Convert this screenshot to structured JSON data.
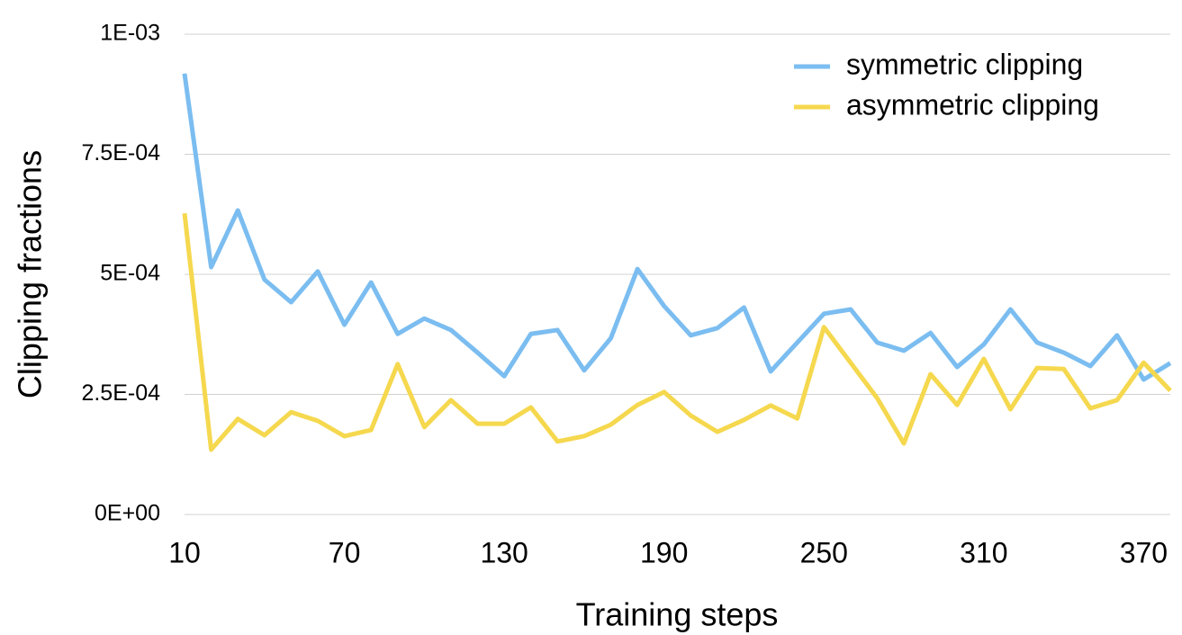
{
  "chart_data": {
    "type": "line",
    "x_label": "Training steps",
    "y_label": "Clipping fractions",
    "x": [
      10,
      20,
      30,
      40,
      50,
      60,
      70,
      80,
      90,
      100,
      110,
      120,
      130,
      140,
      150,
      160,
      170,
      180,
      190,
      200,
      210,
      220,
      230,
      240,
      250,
      260,
      270,
      280,
      290,
      300,
      310,
      320,
      330,
      340,
      350,
      360,
      370,
      380
    ],
    "series": [
      {
        "name": "symmetric clipping",
        "color": "#7bbdf0",
        "values": [
          0.000918,
          0.000515,
          0.000633,
          0.000489,
          0.000442,
          0.000506,
          0.000395,
          0.000483,
          0.000376,
          0.000408,
          0.000384,
          0.000337,
          0.000288,
          0.000376,
          0.000384,
          0.0003,
          0.000367,
          0.000511,
          0.000434,
          0.000373,
          0.000388,
          0.000431,
          0.000298,
          0.000358,
          0.000418,
          0.000427,
          0.000358,
          0.000341,
          0.000378,
          0.000307,
          0.000354,
          0.000427,
          0.000358,
          0.000337,
          0.000309,
          0.000373,
          0.000281,
          0.000315
        ]
      },
      {
        "name": "asymmetric clipping",
        "color": "#f5d84e",
        "values": [
          0.000627,
          0.000135,
          0.000199,
          0.000165,
          0.000213,
          0.000195,
          0.000163,
          0.000176,
          0.000313,
          0.000182,
          0.000238,
          0.000189,
          0.000189,
          0.000223,
          0.000152,
          0.000163,
          0.000187,
          0.000228,
          0.000255,
          0.000206,
          0.000172,
          0.000197,
          0.000227,
          0.0002,
          0.00039,
          0.000316,
          0.000242,
          0.000148,
          0.000292,
          0.000228,
          0.000324,
          0.000219,
          0.000305,
          0.000303,
          0.000221,
          0.000238,
          0.000316,
          0.000258
        ]
      }
    ],
    "xlim": [
      10,
      380
    ],
    "xticks": [
      10,
      70,
      130,
      190,
      250,
      310,
      370
    ],
    "ylim": [
      0,
      0.001
    ],
    "yticks": [
      {
        "value": 0,
        "label": "0E+00"
      },
      {
        "value": 0.00025,
        "label": "2.5E-04"
      },
      {
        "value": 0.0005,
        "label": "5E-04"
      },
      {
        "value": 0.00075,
        "label": "7.5E-04"
      },
      {
        "value": 0.001,
        "label": "1E-03"
      }
    ],
    "grid": true,
    "legend": "top-right"
  }
}
